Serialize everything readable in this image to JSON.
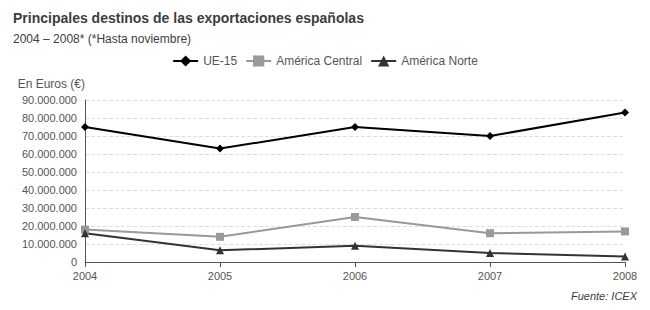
{
  "chart_data": {
    "type": "line",
    "title": "Principales destinos de las exportaciones españolas",
    "subtitle": "2004 – 2008* (*Hasta noviembre)",
    "ylabel": "En Euros (€)",
    "source": "Fuente: ICEX",
    "categories": [
      "2004",
      "2005",
      "2006",
      "2007",
      "2008"
    ],
    "series": [
      {
        "name": "UE-15",
        "color": "#000000",
        "marker": "diamond",
        "values": [
          75000000,
          63000000,
          75000000,
          70000000,
          83000000
        ]
      },
      {
        "name": "América Central",
        "color": "#999999",
        "marker": "square",
        "values": [
          18000000,
          14000000,
          25000000,
          16000000,
          17000000
        ]
      },
      {
        "name": "América Norte",
        "color": "#333333",
        "marker": "triangle",
        "values": [
          16000000,
          6500000,
          9000000,
          5000000,
          3000000
        ]
      }
    ],
    "ylim": [
      0,
      90000000
    ],
    "yticks": [
      0,
      {
        "value": 10000000,
        "label": "10.000.000"
      },
      {
        "value": 20000000,
        "label": "20.000.000"
      },
      {
        "value": 30000000,
        "label": "30.000.000"
      },
      {
        "value": 40000000,
        "label": "40.000.000"
      },
      {
        "value": 50000000,
        "label": "50.000.000"
      },
      {
        "value": 60000000,
        "label": "60.000.000"
      },
      {
        "value": 70000000,
        "label": "70.000.000"
      },
      {
        "value": 80000000,
        "label": "80.000.000"
      },
      {
        "value": 90000000,
        "label": "90.000.000"
      }
    ],
    "grid": true,
    "legend": "top"
  }
}
